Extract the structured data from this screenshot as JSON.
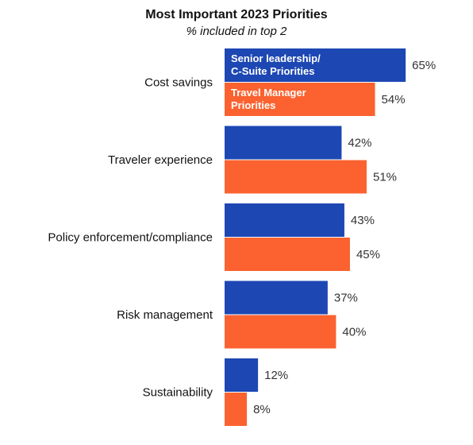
{
  "chart_data": {
    "type": "bar",
    "orientation": "horizontal",
    "title": "Most Important 2023 Priorities",
    "subtitle": "% included in top 2",
    "categories": [
      "Cost savings",
      "Traveler experience",
      "Policy enforcement/compliance",
      "Risk management",
      "Sustainability"
    ],
    "series": [
      {
        "name": "Senior leadership/ C-Suite Priorities",
        "name_lines": [
          "Senior leadership/",
          "C-Suite Priorities"
        ],
        "color": "#1d47b3",
        "values": [
          65,
          42,
          43,
          37,
          12
        ]
      },
      {
        "name": "Travel Manager Priorities",
        "name_lines": [
          "Travel Manager",
          "Priorities"
        ],
        "color": "#fb6230",
        "values": [
          54,
          51,
          45,
          40,
          8
        ]
      }
    ],
    "value_suffix": "%",
    "xlim": [
      0,
      65
    ],
    "legend_placement": "inside first bars",
    "grid": false
  }
}
